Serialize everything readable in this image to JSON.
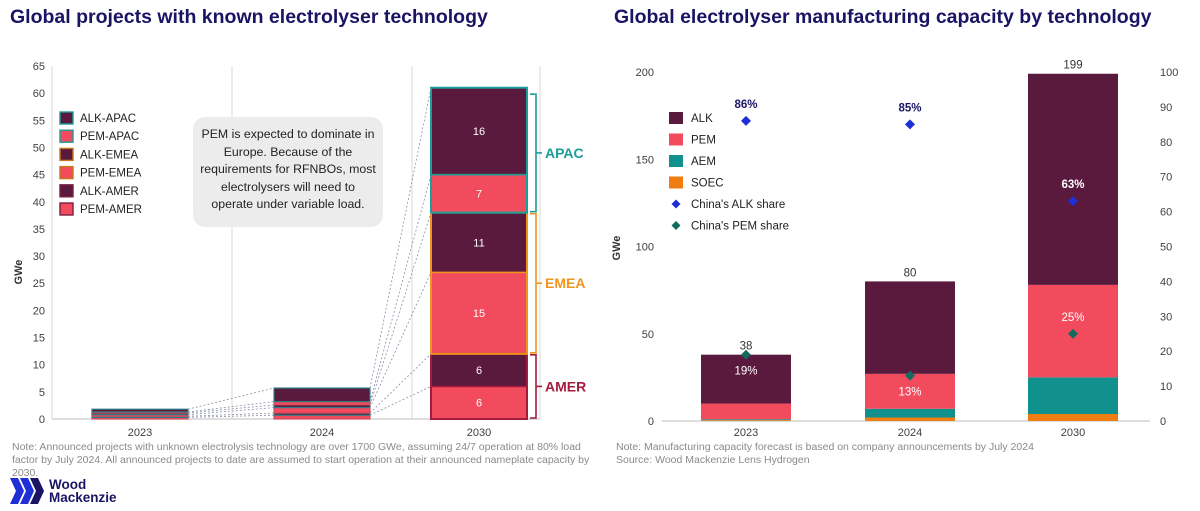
{
  "left_panel": {
    "note": "Note: Announced projects with unknown electrolysis technology are over 1700 GWe, assuming 24/7 operation at 80% load factor by July 2024. All announced projects to date are assumed to start operation at their announced nameplate capacity by 2030.",
    "callout": "PEM is expected to dominate in Europe. Because of the requirements for RFNBOs, most electrolysers will need to operate under variable load."
  },
  "right_panel": {
    "note": "Note: Manufacturing capacity forecast is based on company announcements by July 2024",
    "source": "Source: Wood Mackenzie Lens Hydrogen"
  },
  "logo": {
    "line1": "Wood",
    "line2": "Mackenzie"
  },
  "colors": {
    "title": "#1b1464",
    "alk": "#5a1a3e",
    "pem": "#f24b5e",
    "aem": "#10918e",
    "soec": "#ef7d10",
    "apac": "#1a9e9a",
    "emea": "#f0941e",
    "amer": "#a31c3d",
    "share_alk": "#1f2fd6",
    "share_pem": "#136b5e"
  },
  "chart_data": [
    {
      "type": "bar",
      "stacked": true,
      "title": "Global projects with known electrolyser technology",
      "xlabel": "",
      "ylabel": "GWe",
      "ylim": [
        0,
        65
      ],
      "yticks": [
        0,
        5,
        10,
        15,
        20,
        25,
        30,
        35,
        40,
        45,
        50,
        55,
        60,
        65
      ],
      "categories": [
        "2023",
        "2024",
        "2030"
      ],
      "series": [
        {
          "name": "PEM-AMER",
          "color": "#f24b5e",
          "values": [
            0.3,
            0.7,
            6
          ]
        },
        {
          "name": "ALK-AMER",
          "color": "#5a1a3e",
          "values": [
            0.2,
            0.4,
            6
          ]
        },
        {
          "name": "PEM-EMEA",
          "color": "#f24b5e",
          "values": [
            0.3,
            1.0,
            15
          ]
        },
        {
          "name": "ALK-EMEA",
          "color": "#5a1a3e",
          "values": [
            0.3,
            0.5,
            11
          ]
        },
        {
          "name": "PEM-APAC",
          "color": "#f24b5e",
          "values": [
            0.2,
            0.6,
            7
          ]
        },
        {
          "name": "ALK-APAC",
          "color": "#5a1a3e",
          "values": [
            0.5,
            2.5,
            16
          ]
        }
      ],
      "legend_order": [
        "ALK-APAC",
        "PEM-APAC",
        "ALK-EMEA",
        "PEM-EMEA",
        "ALK-AMER",
        "PEM-AMER"
      ],
      "legend_position": "top-left",
      "region_brackets": [
        {
          "label": "APAC",
          "from": 38,
          "to": 60,
          "color": "#1a9e9a"
        },
        {
          "label": "EMEA",
          "from": 12,
          "to": 38,
          "color": "#f0941e"
        },
        {
          "label": "AMER",
          "from": 0,
          "to": 12,
          "color": "#a31c3d"
        }
      ]
    },
    {
      "type": "bar",
      "stacked": true,
      "title": "Global electrolyser manufacturing capacity by technology",
      "xlabel": "",
      "ylabel": "GWe",
      "ylim": [
        0,
        200
      ],
      "yticks": [
        0,
        50,
        100,
        150,
        200
      ],
      "y2lim": [
        0,
        100
      ],
      "y2ticks": [
        0,
        10,
        20,
        30,
        40,
        50,
        60,
        70,
        80,
        90,
        100
      ],
      "categories": [
        "2023",
        "2024",
        "2030"
      ],
      "series": [
        {
          "name": "SOEC",
          "color": "#ef7d10",
          "values": [
            0.5,
            2,
            4
          ]
        },
        {
          "name": "AEM",
          "color": "#10918e",
          "values": [
            0.5,
            5,
            21
          ]
        },
        {
          "name": "PEM",
          "color": "#f24b5e",
          "values": [
            9,
            20,
            53
          ]
        },
        {
          "name": "ALK",
          "color": "#5a1a3e",
          "values": [
            28,
            53,
            121
          ]
        }
      ],
      "totals": [
        "38",
        "80",
        "199"
      ],
      "legend_order": [
        "ALK",
        "PEM",
        "AEM",
        "SOEC",
        "China's ALK share",
        "China's PEM share"
      ],
      "legend_position": "top-left",
      "share_series": [
        {
          "name": "China's ALK share",
          "color": "#1f2fd6",
          "values": [
            86,
            85,
            63
          ],
          "labels": [
            "86%",
            "85%",
            "63%"
          ]
        },
        {
          "name": "China's PEM share",
          "color": "#136b5e",
          "values": [
            19,
            13,
            25
          ],
          "labels": [
            "19%",
            "13%",
            "25%"
          ]
        }
      ]
    }
  ]
}
